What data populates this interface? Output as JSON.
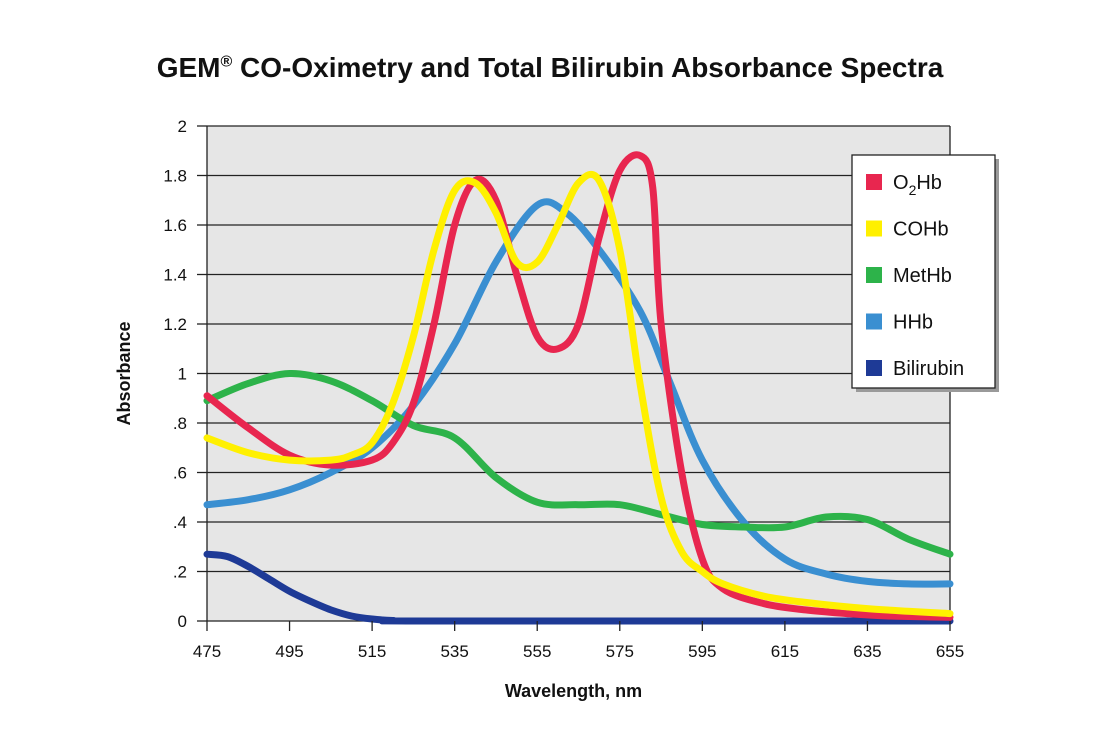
{
  "chart_data": {
    "type": "line",
    "title": "CO-Oximetry and Total Bilirubin Absorbance Spectra",
    "title_prefix": "GEM",
    "title_mark": "®",
    "xlabel": "Wavelength, nm",
    "ylabel": "Absorbance",
    "xlim": [
      475,
      655
    ],
    "ylim": [
      0,
      2
    ],
    "x_ticks": [
      475,
      495,
      515,
      535,
      555,
      575,
      595,
      615,
      635,
      655
    ],
    "y_ticks": [
      {
        "value": 0,
        "label": "0"
      },
      {
        "value": 0.2,
        "label": ".2"
      },
      {
        "value": 0.4,
        "label": ".4"
      },
      {
        "value": 0.6,
        "label": ".6"
      },
      {
        "value": 0.8,
        "label": ".8"
      },
      {
        "value": 1.0,
        "label": "1"
      },
      {
        "value": 1.2,
        "label": "1.2"
      },
      {
        "value": 1.4,
        "label": "1.4"
      },
      {
        "value": 1.6,
        "label": "1.6"
      },
      {
        "value": 1.8,
        "label": "1.8"
      },
      {
        "value": 2.0,
        "label": "2"
      }
    ],
    "grid": "horizontal",
    "plot_background": "#e6e6e6",
    "legend_position": "top-right",
    "series": [
      {
        "name": "O2Hb",
        "legend_main": "O",
        "legend_sub": "2",
        "legend_tail": "Hb",
        "color": "#e8264f",
        "points": [
          [
            475,
            0.91
          ],
          [
            485,
            0.78
          ],
          [
            495,
            0.67
          ],
          [
            505,
            0.63
          ],
          [
            515,
            0.65
          ],
          [
            520,
            0.72
          ],
          [
            525,
            0.88
          ],
          [
            530,
            1.2
          ],
          [
            535,
            1.6
          ],
          [
            540,
            1.78
          ],
          [
            545,
            1.7
          ],
          [
            550,
            1.4
          ],
          [
            555,
            1.15
          ],
          [
            560,
            1.1
          ],
          [
            565,
            1.2
          ],
          [
            570,
            1.55
          ],
          [
            575,
            1.82
          ],
          [
            580,
            1.88
          ],
          [
            583,
            1.75
          ],
          [
            585,
            1.2
          ],
          [
            590,
            0.6
          ],
          [
            595,
            0.25
          ],
          [
            600,
            0.13
          ],
          [
            610,
            0.07
          ],
          [
            620,
            0.045
          ],
          [
            630,
            0.03
          ],
          [
            640,
            0.02
          ],
          [
            655,
            0.015
          ]
        ]
      },
      {
        "name": "COHb",
        "legend_main": "COHb",
        "legend_sub": "",
        "legend_tail": "",
        "color": "#fff000",
        "points": [
          [
            475,
            0.74
          ],
          [
            485,
            0.68
          ],
          [
            495,
            0.65
          ],
          [
            505,
            0.65
          ],
          [
            510,
            0.67
          ],
          [
            515,
            0.72
          ],
          [
            520,
            0.88
          ],
          [
            525,
            1.15
          ],
          [
            530,
            1.5
          ],
          [
            535,
            1.74
          ],
          [
            540,
            1.77
          ],
          [
            545,
            1.65
          ],
          [
            550,
            1.45
          ],
          [
            555,
            1.45
          ],
          [
            560,
            1.6
          ],
          [
            565,
            1.77
          ],
          [
            570,
            1.78
          ],
          [
            575,
            1.5
          ],
          [
            580,
            0.95
          ],
          [
            585,
            0.5
          ],
          [
            590,
            0.28
          ],
          [
            595,
            0.2
          ],
          [
            600,
            0.15
          ],
          [
            610,
            0.1
          ],
          [
            620,
            0.075
          ],
          [
            635,
            0.05
          ],
          [
            655,
            0.03
          ]
        ]
      },
      {
        "name": "MetHb",
        "legend_main": "MetHb",
        "legend_sub": "",
        "legend_tail": "",
        "color": "#2db34a",
        "points": [
          [
            475,
            0.89
          ],
          [
            485,
            0.96
          ],
          [
            495,
            1.0
          ],
          [
            505,
            0.97
          ],
          [
            515,
            0.89
          ],
          [
            525,
            0.79
          ],
          [
            535,
            0.74
          ],
          [
            545,
            0.58
          ],
          [
            555,
            0.48
          ],
          [
            565,
            0.47
          ],
          [
            575,
            0.47
          ],
          [
            585,
            0.43
          ],
          [
            595,
            0.39
          ],
          [
            605,
            0.38
          ],
          [
            615,
            0.38
          ],
          [
            625,
            0.42
          ],
          [
            635,
            0.41
          ],
          [
            645,
            0.33
          ],
          [
            655,
            0.27
          ]
        ]
      },
      {
        "name": "HHb",
        "legend_main": "HHb",
        "legend_sub": "",
        "legend_tail": "",
        "color": "#3a8fd1",
        "points": [
          [
            475,
            0.47
          ],
          [
            485,
            0.49
          ],
          [
            495,
            0.53
          ],
          [
            505,
            0.6
          ],
          [
            515,
            0.7
          ],
          [
            525,
            0.87
          ],
          [
            535,
            1.12
          ],
          [
            545,
            1.45
          ],
          [
            555,
            1.68
          ],
          [
            562,
            1.65
          ],
          [
            570,
            1.5
          ],
          [
            580,
            1.25
          ],
          [
            587,
            0.97
          ],
          [
            595,
            0.65
          ],
          [
            605,
            0.4
          ],
          [
            615,
            0.25
          ],
          [
            625,
            0.19
          ],
          [
            635,
            0.16
          ],
          [
            645,
            0.15
          ],
          [
            655,
            0.15
          ]
        ]
      },
      {
        "name": "Bilirubin",
        "legend_main": "Bilirubin",
        "legend_sub": "",
        "legend_tail": "",
        "color": "#1e3a96",
        "points": [
          [
            475,
            0.27
          ],
          [
            480,
            0.26
          ],
          [
            485,
            0.22
          ],
          [
            490,
            0.17
          ],
          [
            495,
            0.12
          ],
          [
            500,
            0.08
          ],
          [
            505,
            0.045
          ],
          [
            510,
            0.02
          ],
          [
            515,
            0.008
          ],
          [
            520,
            0.002
          ],
          [
            530,
            0.0
          ],
          [
            655,
            0.0
          ]
        ]
      }
    ]
  }
}
